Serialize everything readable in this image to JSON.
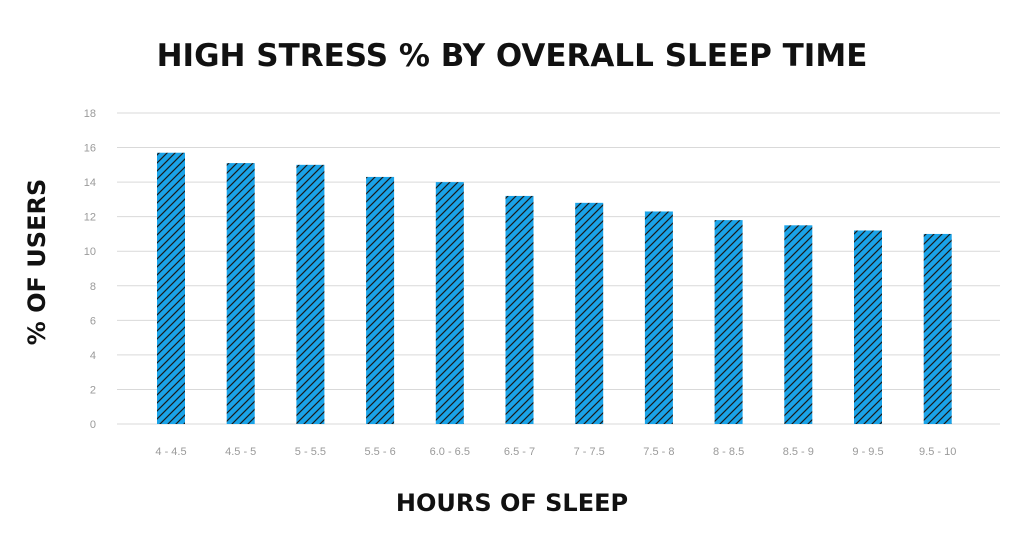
{
  "chart_data": {
    "type": "bar",
    "title": "HIGH STRESS % BY OVERALL SLEEP TIME",
    "xlabel": "HOURS OF SLEEP",
    "ylabel": "% OF USERS",
    "categories": [
      "4 - 4.5",
      "4.5 - 5",
      "5 - 5.5",
      "5.5 - 6",
      "6.0 - 6.5",
      "6.5 - 7",
      "7 - 7.5",
      "7.5 - 8",
      "8 - 8.5",
      "8.5 - 9",
      "9 - 9.5",
      "9.5 - 10"
    ],
    "values": [
      15.7,
      15.1,
      15.0,
      14.3,
      14.0,
      13.2,
      12.8,
      12.3,
      11.8,
      11.5,
      11.2,
      11.0
    ],
    "ylim": [
      0,
      18
    ],
    "yticks": [
      "0",
      "2",
      "4",
      "6",
      "8",
      "10",
      "12",
      "14",
      "16",
      "18"
    ],
    "grid": true,
    "legend": "none",
    "bar_color": "#1aa3e8",
    "hatch_color": "#1a1a1a"
  }
}
